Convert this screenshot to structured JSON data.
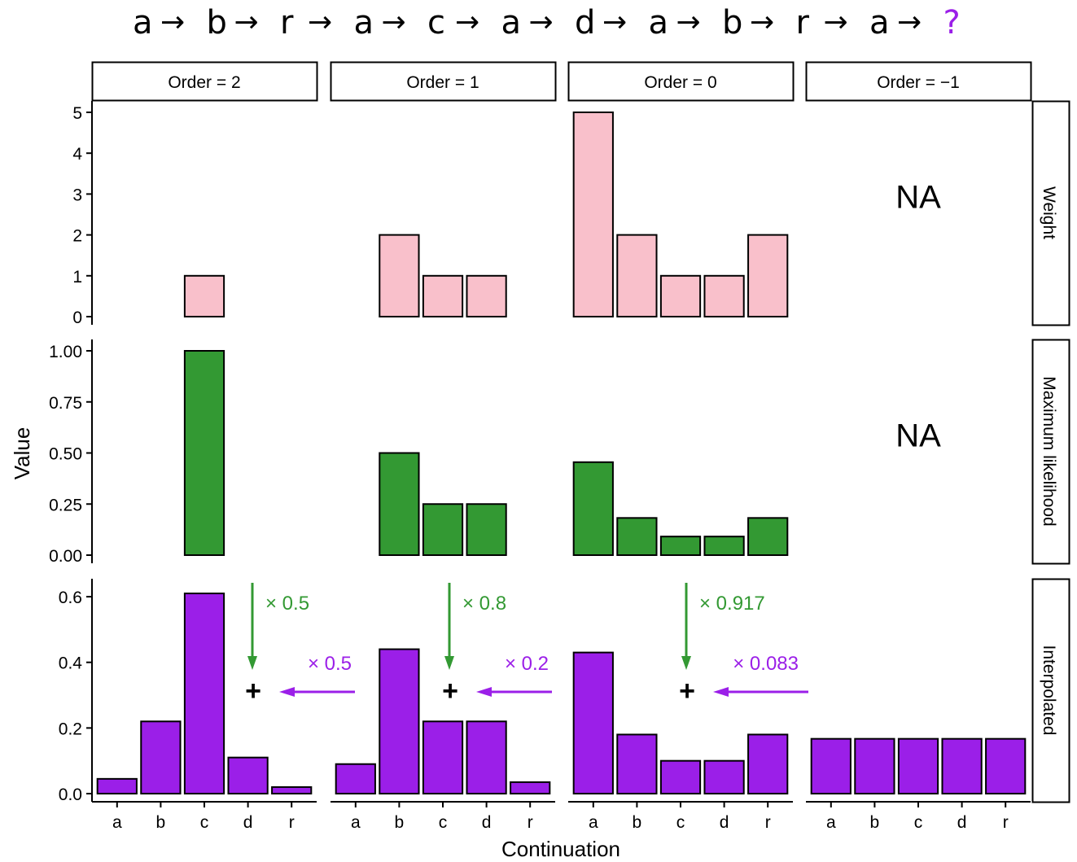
{
  "sequence": {
    "items": [
      "a",
      "b",
      "r",
      "a",
      "c",
      "a",
      "d",
      "a",
      "b",
      "r",
      "a",
      "?"
    ],
    "arrow": "→",
    "highlight_color": "#9b1fe8"
  },
  "chart_data": {
    "type": "bar",
    "xlabel": "Continuation",
    "ylabel": "Value",
    "categories": [
      "a",
      "b",
      "c",
      "d",
      "r"
    ],
    "facet_columns": [
      "Order = 2",
      "Order = 1",
      "Order = 0",
      "Order = −1"
    ],
    "facet_rows": [
      {
        "label": "Weight",
        "color": "#f9c0cb",
        "ylim": [
          0,
          5
        ],
        "ticks": [
          0,
          1,
          2,
          3,
          4,
          5
        ],
        "tick_labels": [
          "0",
          "1",
          "2",
          "3",
          "4",
          "5"
        ],
        "values": [
          [
            0,
            0,
            1,
            0,
            0
          ],
          [
            0,
            2,
            1,
            1,
            0
          ],
          [
            5,
            2,
            1,
            1,
            2
          ],
          null
        ],
        "na_label": "NA"
      },
      {
        "label": "Maximum likelihood",
        "color": "#339933",
        "ylim": [
          0,
          1
        ],
        "ticks": [
          0,
          0.25,
          0.5,
          0.75,
          1.0
        ],
        "tick_labels": [
          "0.00",
          "0.25",
          "0.50",
          "0.75",
          "1.00"
        ],
        "values": [
          [
            0,
            0,
            1.0,
            0,
            0
          ],
          [
            0,
            0.5,
            0.25,
            0.25,
            0
          ],
          [
            0.455,
            0.182,
            0.091,
            0.091,
            0.182
          ],
          null
        ],
        "na_label": "NA"
      },
      {
        "label": "Interpolated",
        "color": "#9b1fe8",
        "ylim": [
          0,
          0.62
        ],
        "ticks": [
          0,
          0.2,
          0.4,
          0.6
        ],
        "tick_labels": [
          "0.0",
          "0.2",
          "0.4",
          "0.6"
        ],
        "values": [
          [
            0.045,
            0.22,
            0.61,
            0.11,
            0.02
          ],
          [
            0.09,
            0.44,
            0.22,
            0.22,
            0.035
          ],
          [
            0.43,
            0.18,
            0.1,
            0.1,
            0.18
          ],
          [
            0.167,
            0.167,
            0.167,
            0.167,
            0.167
          ]
        ],
        "na_label": ""
      }
    ],
    "annotations": [
      {
        "green": "× 0.5",
        "purple": "× 0.5",
        "plus": "+"
      },
      {
        "green": "× 0.8",
        "purple": "× 0.2",
        "plus": "+"
      },
      {
        "green": "× 0.917",
        "purple": "× 0.083",
        "plus": "+"
      }
    ],
    "annotation_colors": {
      "green": "#339933",
      "purple": "#9b1fe8"
    }
  }
}
